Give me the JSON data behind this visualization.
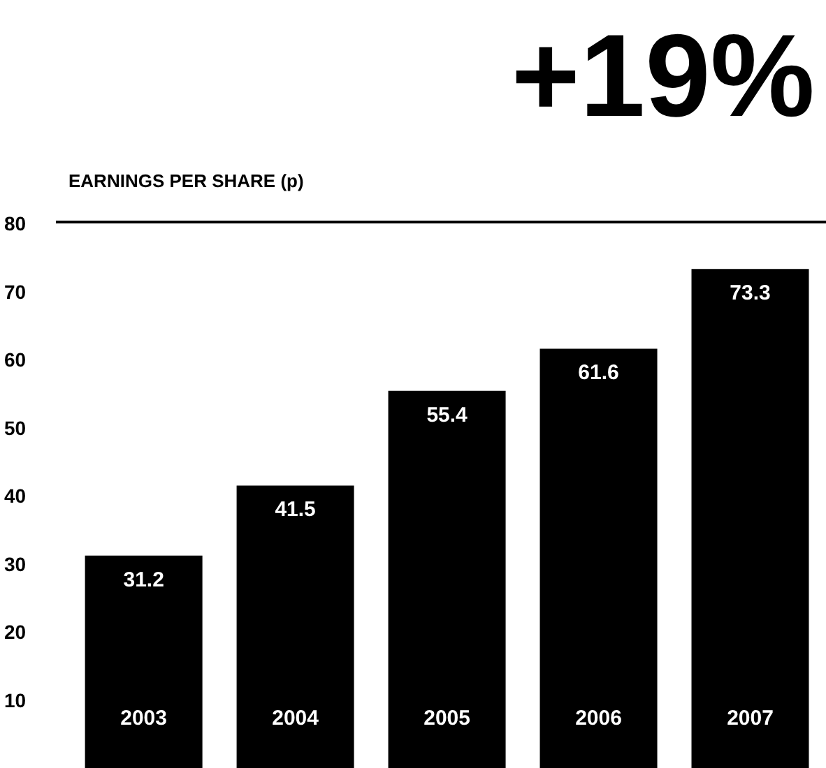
{
  "chart_data": {
    "type": "bar",
    "title": "EARNINGS PER SHARE (p)",
    "annotations": [
      "+19%"
    ],
    "categories": [
      "2003",
      "2004",
      "2005",
      "2006",
      "2007"
    ],
    "values": [
      31.2,
      41.5,
      55.4,
      61.6,
      73.3
    ],
    "color": "#000000",
    "ylim": [
      0,
      80
    ],
    "yticks": [
      10,
      20,
      30,
      40,
      50,
      60,
      70,
      80
    ],
    "data_labels": true,
    "grid": false
  }
}
